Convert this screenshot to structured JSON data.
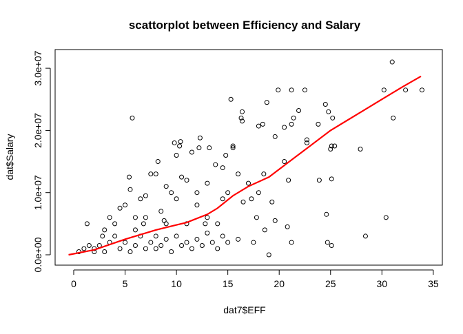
{
  "chart_data": {
    "type": "scatter",
    "title": "scattorplot between Efficiency and Salary",
    "x_label": "dat7$EFF",
    "y_label": "dat$Salary",
    "xlim": [
      -1.81,
      35.88
    ],
    "ylim": [
      -1660000.0,
      33000000.0
    ],
    "xticks": [
      0,
      5,
      10,
      15,
      20,
      25,
      30,
      35
    ],
    "yticks": [
      {
        "value": 0,
        "label": "0.0e+00"
      },
      {
        "value": 10000000.0,
        "label": "1.0e+07"
      },
      {
        "value": 20000000.0,
        "label": "2.0e+07"
      },
      {
        "value": 30000000.0,
        "label": "3.0e+07"
      }
    ],
    "color": "#000000",
    "x": [
      31,
      30.2,
      32.3,
      33.9,
      31.1,
      30.4,
      28.4,
      27.9,
      25.4,
      25.1,
      25,
      25.1,
      24.8,
      24.5,
      25.2,
      24.6,
      24.7,
      25.1,
      23.9,
      23.8,
      22.5,
      21.9,
      22.7,
      22.7,
      21.2,
      21.2,
      21.4,
      20.5,
      19.9,
      19.6,
      18.8,
      18.4,
      18,
      20.9,
      20.8,
      21.2,
      19.6,
      19.3,
      19,
      18.6,
      17.5,
      17.8,
      16.4,
      16.3,
      16.4,
      15.3,
      15.5,
      15.5,
      14.8,
      14.5,
      13.8,
      12.3,
      12.2,
      13.2,
      11.5,
      10.4,
      9.8,
      10.3,
      10,
      5.4,
      5.7,
      5.5,
      8.2,
      7.5,
      6.5,
      15,
      16,
      16.5,
      17,
      14,
      13,
      12,
      11,
      10,
      9,
      8.5,
      8,
      7,
      6,
      5,
      4,
      3,
      1.3,
      0.5,
      1,
      2,
      2.5,
      3,
      3.5,
      4.5,
      5,
      5.5,
      6,
      6.5,
      7,
      7.5,
      8,
      8.5,
      9,
      9.5,
      10,
      10.5,
      11,
      11.5,
      12,
      12.5,
      13,
      13.5,
      14,
      14.5,
      15,
      16,
      1.5,
      2,
      4,
      6,
      9,
      11,
      12,
      13,
      14.5,
      7,
      8,
      9.5,
      10.5,
      3.5,
      4.5,
      2.8,
      6.8,
      8.8,
      12.8,
      17.3,
      18,
      18.5,
      20.5
    ],
    "values": [
      31000000.0,
      26500000.0,
      26500000.0,
      26500000.0,
      22000000.0,
      6000000.0,
      3000000.0,
      17000000.0,
      17500000.0,
      17500000.0,
      17000000.0,
      12200000.0,
      23000000.0,
      24200000.0,
      22000000.0,
      6500000.0,
      2000000.0,
      1500000.0,
      12000000.0,
      21000000.0,
      26500000.0,
      23200000.0,
      18000000.0,
      18500000.0,
      26500000.0,
      21000000.0,
      22000000.0,
      20500000.0,
      26500000.0,
      19000000.0,
      24500000.0,
      21000000.0,
      20700000.0,
      12000000.0,
      4500000.0,
      2000000.0,
      5500000.0,
      8500000.0,
      0,
      4000000.0,
      2000000.0,
      6000000.0,
      23000000.0,
      22000000.0,
      21500000.0,
      25000000.0,
      17200000.0,
      17500000.0,
      16000000.0,
      14000000.0,
      14500000.0,
      18800000.0,
      17200000.0,
      17200000.0,
      16500000.0,
      18200000.0,
      18000000.0,
      17500000.0,
      16000000.0,
      12500000.0,
      22000000.0,
      10500000.0,
      15000000.0,
      13000000.0,
      9000000.0,
      10000000.0,
      13000000.0,
      8500000.0,
      11500000.0,
      5000000.0,
      6000000.0,
      8000000.0,
      5000000.0,
      9000000.0,
      11000000.0,
      7000000.0,
      3000000.0,
      6000000.0,
      4000000.0,
      8000000.0,
      3000000.0,
      4000000.0,
      5000000.0,
      500000.0,
      1000000.0,
      1000000.0,
      1500000.0,
      500000.0,
      2000000.0,
      1000000.0,
      2000000.0,
      500000.0,
      1500000.0,
      3000000.0,
      1000000.0,
      2000000.0,
      1000000.0,
      1500000.0,
      2500000.0,
      500000.0,
      3000000.0,
      1500000.0,
      2000000.0,
      1000000.0,
      2500000.0,
      1500000.0,
      3500000.0,
      2000000.0,
      1000000.0,
      3000000.0,
      2000000.0,
      2500000.0,
      1500000.0,
      500000.0,
      5000000.0,
      6000000.0,
      5000000.0,
      12000000.0,
      10000000.0,
      11500000.0,
      9000000.0,
      9500000.0,
      13000000.0,
      10000000.0,
      12500000.0,
      6000000.0,
      7500000.0,
      3000000.0,
      5000000.0,
      5500000.0,
      5000000.0,
      9000000.0,
      10000000.0,
      13000000.0,
      15000000.0
    ],
    "smooth_color": "#ff0000",
    "smooth_x": [
      -0.5,
      2,
      5,
      8,
      11,
      13,
      14,
      15.5,
      17,
      19,
      21,
      23,
      25,
      28,
      30,
      32,
      33.8
    ],
    "smooth_values": [
      0,
      800000.0,
      2500000.0,
      4000000.0,
      5200000.0,
      6500000.0,
      7500000.0,
      9500000.0,
      11000000.0,
      12500000.0,
      15000000.0,
      17500000.0,
      20000000.0,
      23000000.0,
      25000000.0,
      27000000.0,
      28700000.0
    ]
  }
}
